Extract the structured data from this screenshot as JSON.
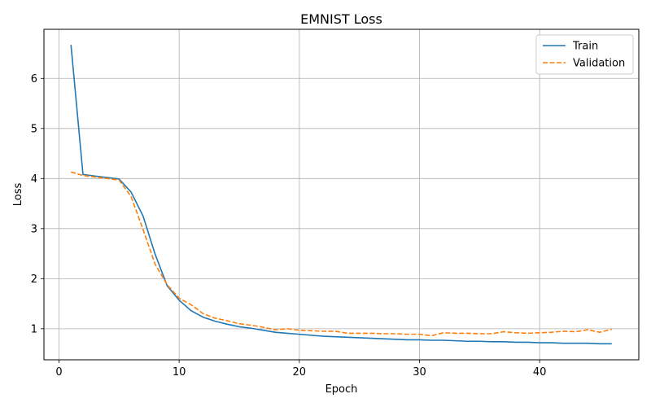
{
  "chart_data": {
    "type": "line",
    "title": "EMNIST Loss",
    "xlabel": "Epoch",
    "ylabel": "Loss",
    "xlim": [
      -1.25,
      48.25
    ],
    "ylim": [
      0.38,
      6.98
    ],
    "xticks": [
      0,
      10,
      20,
      30,
      40
    ],
    "yticks": [
      1,
      2,
      3,
      4,
      5,
      6
    ],
    "grid": true,
    "legend_position": "top-right",
    "x": [
      1,
      2,
      3,
      4,
      5,
      6,
      7,
      8,
      9,
      10,
      11,
      12,
      13,
      14,
      15,
      16,
      17,
      18,
      19,
      20,
      21,
      22,
      23,
      24,
      25,
      26,
      27,
      28,
      29,
      30,
      31,
      32,
      33,
      34,
      35,
      36,
      37,
      38,
      39,
      40,
      41,
      42,
      43,
      44,
      45,
      46
    ],
    "series": [
      {
        "name": "Train",
        "color": "#1f77b4",
        "style": "solid",
        "values": [
          6.67,
          4.08,
          4.05,
          4.02,
          3.99,
          3.73,
          3.25,
          2.49,
          1.86,
          1.57,
          1.36,
          1.23,
          1.15,
          1.09,
          1.04,
          1.01,
          0.97,
          0.93,
          0.91,
          0.89,
          0.87,
          0.85,
          0.84,
          0.83,
          0.82,
          0.81,
          0.8,
          0.79,
          0.78,
          0.78,
          0.77,
          0.77,
          0.76,
          0.75,
          0.75,
          0.74,
          0.74,
          0.73,
          0.73,
          0.72,
          0.72,
          0.71,
          0.71,
          0.71,
          0.7,
          0.7
        ]
      },
      {
        "name": "Validation",
        "color": "#ff7f0e",
        "style": "dashed",
        "values": [
          4.13,
          4.06,
          4.03,
          4.0,
          3.97,
          3.64,
          2.98,
          2.29,
          1.88,
          1.61,
          1.48,
          1.3,
          1.21,
          1.16,
          1.1,
          1.07,
          1.03,
          0.98,
          1.0,
          0.97,
          0.96,
          0.95,
          0.95,
          0.91,
          0.91,
          0.91,
          0.9,
          0.9,
          0.89,
          0.89,
          0.86,
          0.92,
          0.91,
          0.91,
          0.9,
          0.9,
          0.94,
          0.92,
          0.91,
          0.92,
          0.93,
          0.95,
          0.94,
          0.98,
          0.93,
          0.99
        ]
      }
    ]
  }
}
